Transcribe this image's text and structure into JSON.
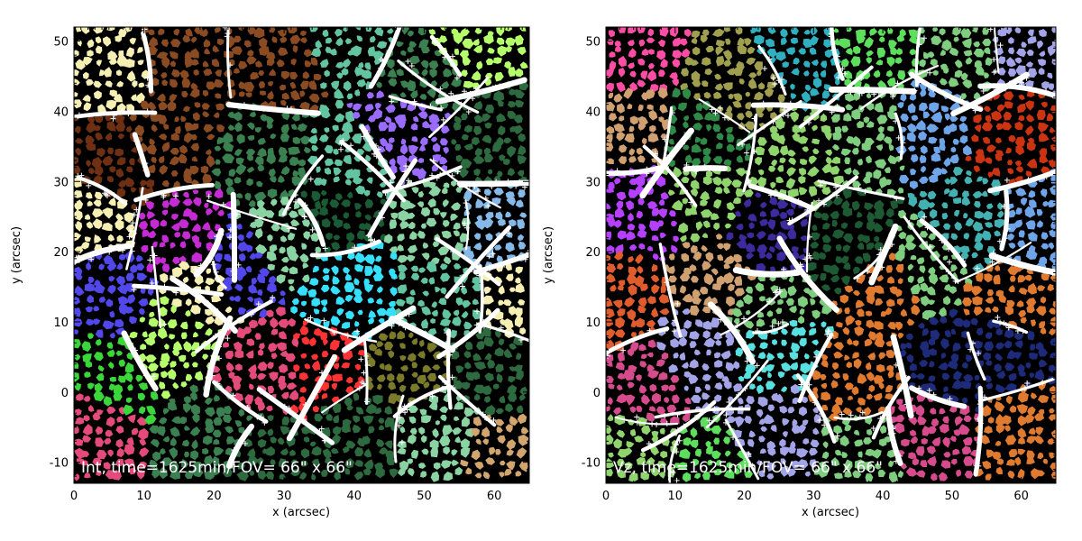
{
  "chart_data": [
    {
      "type": "heatmap",
      "title": "",
      "overlay_text": "Int, time=1625min/FOV= 66\" x 66\"",
      "xlabel": "x (arcsec)",
      "ylabel": "y (arcsec)",
      "xlim": [
        0,
        65
      ],
      "ylim": [
        -13,
        52
      ],
      "xticks": [
        0,
        10,
        20,
        30,
        40,
        50,
        60
      ],
      "yticks": [
        -10,
        0,
        10,
        20,
        30,
        40,
        50
      ],
      "grid": false,
      "legend": "none",
      "seed": 11,
      "colors": [
        "#7a7a2a",
        "#1a5a34",
        "#2d6a3f",
        "#3a8050",
        "#6f8f8f",
        "#c07f1b",
        "#e44b7a",
        "#ef6b73",
        "#ff3333",
        "#8ad4a3",
        "#62c4a0",
        "#4e7fd0",
        "#6e2f12",
        "#8b4b22",
        "#f6efb4",
        "#2f3aa0",
        "#3ad63a",
        "#b5ff6b",
        "#35e0ff",
        "#c52bd2",
        "#5147ea",
        "#84b9e8",
        "#9a6bff",
        "#d2a56e"
      ]
    },
    {
      "type": "heatmap",
      "title": "",
      "overlay_text": "Vz, time=1625min/FOV= 66\" x 66\"",
      "xlabel": "x (arcsec)",
      "ylabel": "y (arcsec)",
      "xlim": [
        0,
        65
      ],
      "ylim": [
        -13,
        52
      ],
      "xticks": [
        0,
        10,
        20,
        30,
        40,
        50,
        60
      ],
      "yticks": [
        -10,
        0,
        10,
        20,
        30,
        40,
        50
      ],
      "grid": false,
      "legend": "none",
      "seed": 29,
      "colors": [
        "#e05c2c",
        "#8fd46c",
        "#2f8a48",
        "#1d5a33",
        "#6a4ad0",
        "#b640ff",
        "#3d2a9c",
        "#ff4da6",
        "#d0a070",
        "#43b1b1",
        "#7fcd7f",
        "#a0c86a",
        "#c9b23a",
        "#1e2a7a",
        "#57e0e0",
        "#a3a3e8",
        "#cc3311",
        "#5ddf5d",
        "#9f9f4f",
        "#2fb0c0",
        "#e07a2f",
        "#6ea4e8",
        "#b89a32",
        "#d54b8c"
      ]
    }
  ]
}
